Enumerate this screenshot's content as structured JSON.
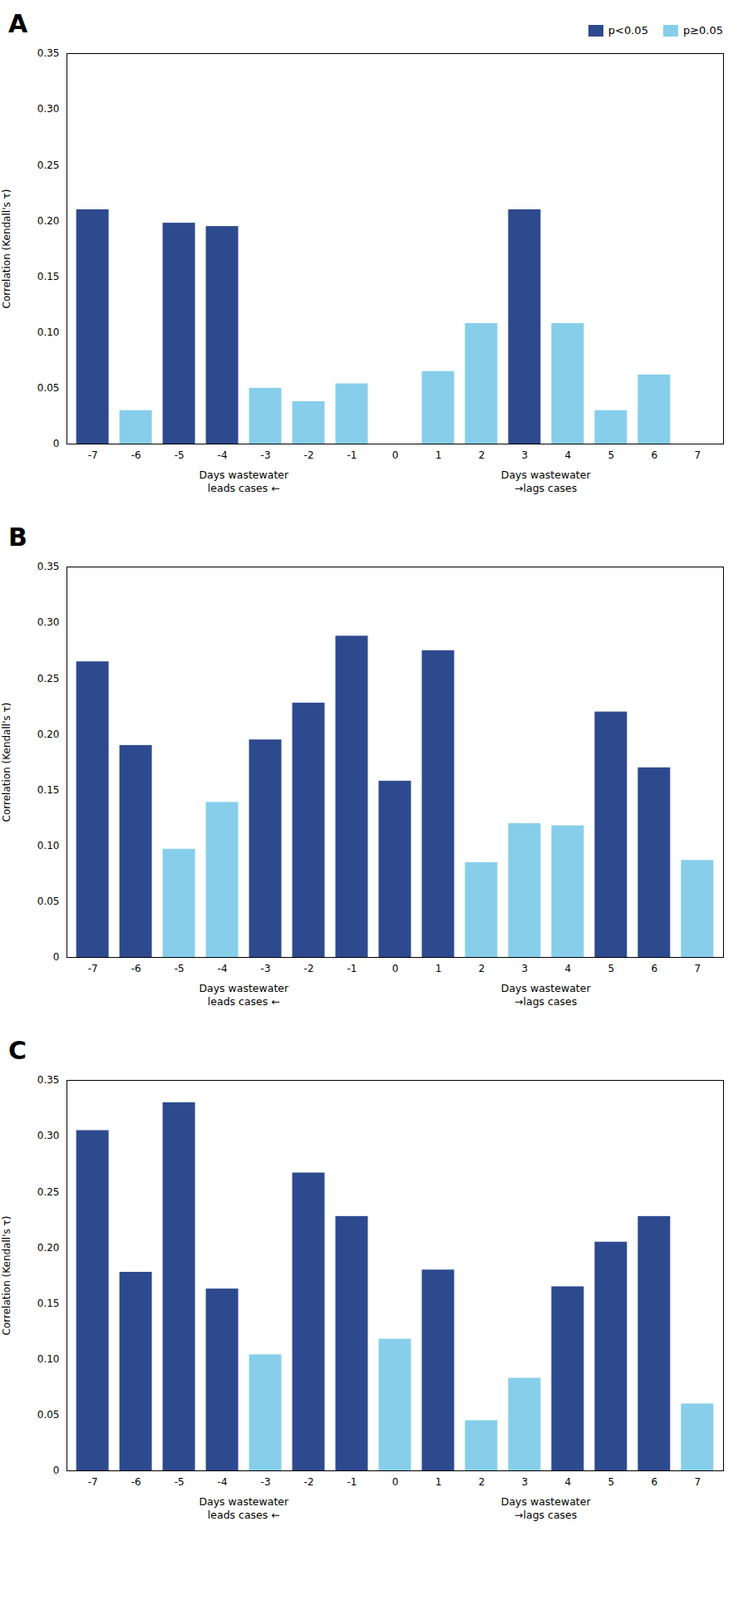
{
  "chart_data": [
    {
      "type": "bar",
      "title": "A",
      "x": [
        -7,
        -6,
        -5,
        -4,
        -3,
        -2,
        -1,
        0,
        1,
        2,
        3,
        4,
        5,
        6,
        7
      ],
      "series": [
        {
          "name": "p<0.05",
          "color": "#2e4a8e",
          "values": [
            0.21,
            null,
            0.198,
            0.195,
            null,
            null,
            null,
            null,
            null,
            null,
            0.21,
            null,
            null,
            null,
            null
          ]
        },
        {
          "name": "p≥0.05",
          "color": "#87ceeb",
          "values": [
            null,
            0.03,
            null,
            null,
            0.05,
            0.038,
            0.054,
            0.0,
            0.065,
            0.108,
            null,
            0.108,
            0.03,
            0.062,
            0.0
          ]
        }
      ],
      "legend": "upper right",
      "xlim": [
        -7.6,
        7.6
      ],
      "xticks": [
        -7,
        -6,
        -5,
        -4,
        -3,
        -2,
        -1,
        0,
        1,
        2,
        3,
        4,
        5,
        6,
        7
      ],
      "ylim": [
        0,
        0.35
      ],
      "yticks": [
        0,
        0.05,
        {
          "value": 0.1,
          "label": "0.10"
        },
        0.15,
        {
          "value": 0.2,
          "label": "0.20"
        },
        0.25,
        {
          "value": 0.3,
          "label": "0.30"
        },
        0.35
      ],
      "ylabel": "Correlation (Kendall's τ)",
      "annotations": [
        "Days wastewater\nleads cases ←",
        "Days wastewater\n→lags cases"
      ],
      "grid": false
    },
    {
      "type": "bar",
      "title": "B",
      "x": [
        -7,
        -6,
        -5,
        -4,
        -3,
        -2,
        -1,
        0,
        1,
        2,
        3,
        4,
        5,
        6,
        7
      ],
      "values": [
        0.265,
        0.19,
        0.097,
        0.139,
        0.195,
        0.228,
        0.288,
        0.158,
        0.275,
        0.085,
        0.12,
        0.118,
        0.22,
        0.17,
        0.087
      ],
      "colors": [
        "#2e4a8e",
        "#2e4a8e",
        "#87ceeb",
        "#87ceeb",
        "#2e4a8e",
        "#2e4a8e",
        "#2e4a8e",
        "#2e4a8e",
        "#2e4a8e",
        "#87ceeb",
        "#87ceeb",
        "#87ceeb",
        "#2e4a8e",
        "#2e4a8e",
        "#87ceeb"
      ],
      "xlim": [
        -7.6,
        7.6
      ],
      "xticks": [
        -7,
        -6,
        -5,
        -4,
        -3,
        -2,
        -1,
        0,
        1,
        2,
        3,
        4,
        5,
        6,
        7
      ],
      "ylim": [
        0,
        0.35
      ],
      "yticks": [
        0,
        0.05,
        {
          "value": 0.1,
          "label": "0.10"
        },
        0.15,
        {
          "value": 0.2,
          "label": "0.20"
        },
        0.25,
        {
          "value": 0.3,
          "label": "0.30"
        },
        0.35
      ],
      "ylabel": "Correlation (Kendall's τ)",
      "annotations": [
        "Days wastewater\nleads cases ←",
        "Days wastewater\n→lags cases"
      ],
      "grid": false
    },
    {
      "type": "bar",
      "title": "C",
      "x": [
        -7,
        -6,
        -5,
        -4,
        -3,
        -2,
        -1,
        0,
        1,
        2,
        3,
        4,
        5,
        6,
        7
      ],
      "values": [
        0.305,
        0.178,
        0.33,
        0.163,
        0.104,
        0.267,
        0.228,
        0.118,
        0.18,
        0.045,
        0.083,
        0.165,
        0.205,
        0.228,
        0.06
      ],
      "colors": [
        "#2e4a8e",
        "#2e4a8e",
        "#2e4a8e",
        "#2e4a8e",
        "#87ceeb",
        "#2e4a8e",
        "#2e4a8e",
        "#87ceeb",
        "#2e4a8e",
        "#87ceeb",
        "#87ceeb",
        "#2e4a8e",
        "#2e4a8e",
        "#2e4a8e",
        "#87ceeb"
      ],
      "xlim": [
        -7.6,
        7.6
      ],
      "xticks": [
        -7,
        -6,
        -5,
        -4,
        -3,
        -2,
        -1,
        0,
        1,
        2,
        3,
        4,
        5,
        6,
        7
      ],
      "ylim": [
        0,
        0.35
      ],
      "yticks": [
        0,
        0.05,
        {
          "value": 0.1,
          "label": "0.10"
        },
        0.15,
        {
          "value": 0.2,
          "label": "0.20"
        },
        0.25,
        {
          "value": 0.3,
          "label": "0.30"
        },
        0.35
      ],
      "ylabel": "Correlation (Kendall's τ)",
      "annotations": [
        "Days wastewater\nleads cases ←",
        "Days wastewater\n→lags cases"
      ],
      "grid": false
    }
  ]
}
